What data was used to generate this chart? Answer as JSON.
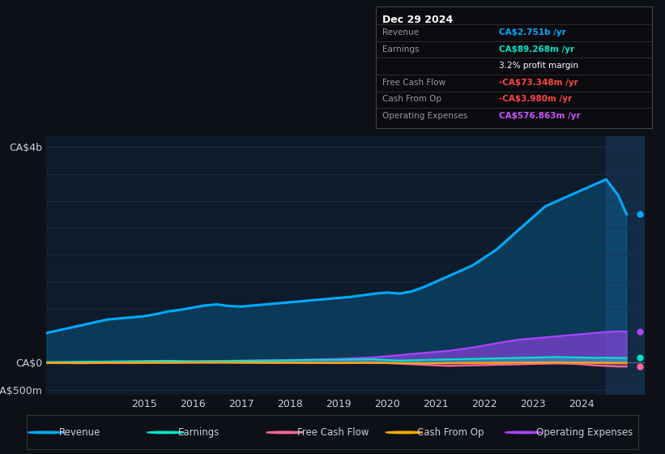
{
  "bg_color": "#0d1117",
  "plot_bg_color": "#0d1b2a",
  "grid_color": "#1e3050",
  "text_color": "#c8d0d8",
  "years": [
    2013.0,
    2013.25,
    2013.5,
    2013.75,
    2014.0,
    2014.25,
    2014.5,
    2014.75,
    2015.0,
    2015.25,
    2015.5,
    2015.75,
    2016.0,
    2016.25,
    2016.5,
    2016.75,
    2017.0,
    2017.25,
    2017.5,
    2017.75,
    2018.0,
    2018.25,
    2018.5,
    2018.75,
    2019.0,
    2019.25,
    2019.5,
    2019.75,
    2020.0,
    2020.25,
    2020.5,
    2020.75,
    2021.0,
    2021.25,
    2021.5,
    2021.75,
    2022.0,
    2022.25,
    2022.5,
    2022.75,
    2023.0,
    2023.25,
    2023.5,
    2023.75,
    2024.0,
    2024.25,
    2024.5,
    2024.75,
    2024.92
  ],
  "revenue": [
    550,
    600,
    650,
    700,
    750,
    800,
    820,
    840,
    860,
    900,
    950,
    980,
    1020,
    1060,
    1080,
    1050,
    1040,
    1060,
    1080,
    1100,
    1120,
    1140,
    1160,
    1180,
    1200,
    1220,
    1250,
    1280,
    1300,
    1280,
    1320,
    1400,
    1500,
    1600,
    1700,
    1800,
    1950,
    2100,
    2300,
    2500,
    2700,
    2900,
    3000,
    3100,
    3200,
    3300,
    3400,
    3100,
    2751
  ],
  "earnings": [
    10,
    12,
    15,
    18,
    20,
    22,
    25,
    28,
    30,
    32,
    35,
    30,
    25,
    28,
    30,
    32,
    35,
    38,
    40,
    42,
    45,
    48,
    50,
    52,
    55,
    58,
    60,
    62,
    50,
    40,
    45,
    50,
    55,
    60,
    65,
    70,
    75,
    80,
    85,
    90,
    95,
    100,
    105,
    100,
    95,
    90,
    92,
    88,
    89
  ],
  "free_cash_flow": [
    -5,
    -8,
    -10,
    -12,
    -8,
    -5,
    -3,
    -2,
    -1,
    0,
    2,
    3,
    4,
    5,
    6,
    4,
    3,
    2,
    1,
    0,
    -2,
    -3,
    -4,
    -5,
    -6,
    -5,
    -4,
    -3,
    -10,
    -20,
    -30,
    -40,
    -50,
    -60,
    -55,
    -50,
    -45,
    -40,
    -35,
    -30,
    -25,
    -20,
    -15,
    -20,
    -30,
    -50,
    -60,
    -73,
    -73
  ],
  "cash_from_op": [
    -2,
    -3,
    -4,
    -5,
    -3,
    -2,
    -1,
    0,
    1,
    2,
    3,
    4,
    5,
    6,
    7,
    5,
    4,
    3,
    2,
    1,
    0,
    -1,
    -2,
    -3,
    -4,
    -3,
    -2,
    -1,
    -5,
    -8,
    -10,
    -12,
    -10,
    -8,
    -6,
    -4,
    -2,
    0,
    2,
    3,
    4,
    5,
    6,
    4,
    2,
    0,
    -2,
    -4,
    -4
  ],
  "operating_expenses": [
    5,
    6,
    7,
    8,
    9,
    10,
    12,
    15,
    18,
    20,
    22,
    25,
    28,
    30,
    32,
    35,
    38,
    40,
    42,
    45,
    50,
    55,
    60,
    65,
    70,
    80,
    90,
    100,
    120,
    140,
    160,
    180,
    200,
    220,
    250,
    280,
    320,
    360,
    400,
    430,
    450,
    470,
    490,
    510,
    530,
    550,
    570,
    580,
    577
  ],
  "revenue_color": "#00aaff",
  "earnings_color": "#00e5c8",
  "fcf_color": "#ff6699",
  "cfo_color": "#ffaa00",
  "opex_color": "#aa44ff",
  "highlight_start": 2024.5,
  "xlim": [
    2013.0,
    2025.3
  ],
  "ylim": [
    -600,
    4200
  ],
  "xtick_years": [
    2015,
    2016,
    2017,
    2018,
    2019,
    2020,
    2021,
    2022,
    2023,
    2024
  ],
  "tooltip_title": "Dec 29 2024",
  "tooltip_rows": [
    {
      "label": "Revenue",
      "value": "CA$2.751b /yr",
      "color": "#00aaff",
      "bold_value": true
    },
    {
      "label": "Earnings",
      "value": "CA$89.268m /yr",
      "color": "#00e5c8",
      "bold_value": true
    },
    {
      "label": "",
      "value": "3.2% profit margin",
      "color": "#ffffff",
      "bold_value": false
    },
    {
      "label": "Free Cash Flow",
      "value": "-CA$73.348m /yr",
      "color": "#ff4444",
      "bold_value": true
    },
    {
      "label": "Cash From Op",
      "value": "-CA$3.980m /yr",
      "color": "#ff4444",
      "bold_value": true
    },
    {
      "label": "Operating Expenses",
      "value": "CA$576.863m /yr",
      "color": "#cc55ff",
      "bold_value": true
    }
  ],
  "legend": [
    {
      "label": "Revenue",
      "color": "#00aaff"
    },
    {
      "label": "Earnings",
      "color": "#00e5c8"
    },
    {
      "label": "Free Cash Flow",
      "color": "#ff6699"
    },
    {
      "label": "Cash From Op",
      "color": "#ffaa00"
    },
    {
      "label": "Operating Expenses",
      "color": "#aa44ff"
    }
  ]
}
